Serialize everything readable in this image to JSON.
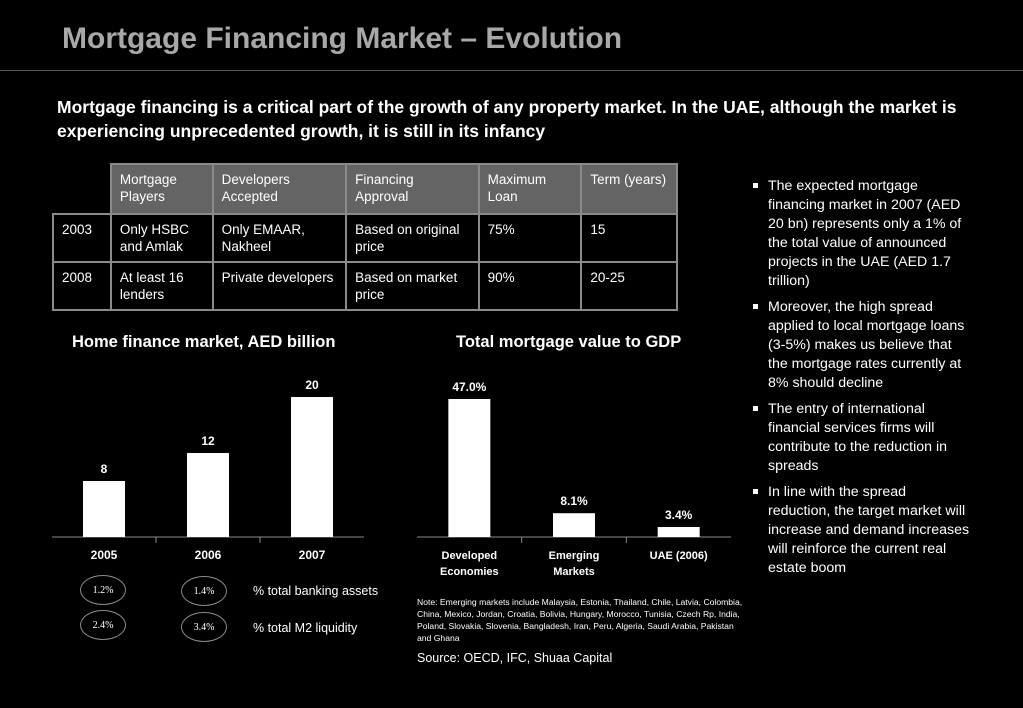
{
  "title": "Mortgage Financing Market – Evolution",
  "subtitle": "Mortgage financing is a critical part of the growth of any property market. In the UAE, although the market is experiencing unprecedented growth, it is still in its infancy",
  "table": {
    "headers": [
      "Mortgage Players",
      "Developers Accepted",
      "Financing Approval",
      "Maximum Loan",
      "Term (years)"
    ],
    "rows": [
      {
        "year": "2003",
        "cells": [
          "Only HSBC and Amlak",
          "Only EMAAR, Nakheel",
          "Based on original price",
          "75%",
          "15"
        ]
      },
      {
        "year": "2008",
        "cells": [
          "At least 16 lenders",
          "Private developers",
          "Based on market price",
          "90%",
          "20-25"
        ]
      }
    ]
  },
  "chart_data": [
    {
      "type": "bar",
      "title": "Home finance market, AED billion",
      "categories": [
        "2005",
        "2006",
        "2007"
      ],
      "values": [
        8,
        12,
        20
      ],
      "value_labels": [
        "8",
        "12",
        "20"
      ],
      "bar_color": "#ffffff"
    },
    {
      "type": "bar",
      "title": "Total mortgage value to GDP",
      "categories": [
        "Developed Economies",
        "Emerging Markets",
        "UAE (2006)"
      ],
      "category_lines": [
        [
          "Developed",
          "Economies"
        ],
        [
          "Emerging",
          "Markets"
        ],
        [
          "UAE (2006)"
        ]
      ],
      "values": [
        47.0,
        8.1,
        3.4
      ],
      "value_labels": [
        "47.0%",
        "8.1%",
        "3.4%"
      ],
      "bar_color": "#ffffff"
    }
  ],
  "indicators": {
    "banking_assets": {
      "label": "% total banking assets",
      "values": [
        "1.2%",
        "1.4%"
      ]
    },
    "m2_liquidity": {
      "label": "% total M2 liquidity",
      "values": [
        "2.4%",
        "3.4%"
      ]
    }
  },
  "note": "Note: Emerging markets include Malaysia, Estonia, Thailand, Chile, Latvia, Colombia, China, Mexico, Jordan, Croatia, Bolivia, Hungary, Morocco, Tunisia, Czech Rp, India, Poland, Slovakia, Slovenia, Bangladesh, Iran, Peru, Algeria, Saudi Arabia, Pakistan and Ghana",
  "source": "Source: OECD, IFC, Shuaa Capital",
  "bullets": [
    "The expected mortgage financing market in 2007 (AED 20 bn) represents only a 1% of the total value of announced projects in the UAE (AED 1.7 trillion)",
    "Moreover, the high spread applied to local mortgage loans (3-5%) makes us believe that the mortgage rates currently at 8% should decline",
    "The entry of international financial services firms will contribute to the reduction in spreads",
    "In line with the spread reduction, the target market will increase and demand increases will reinforce the current real estate boom"
  ],
  "colors": {
    "background": "#000000",
    "title": "#a8a8a8",
    "table_header": "#646464",
    "table_border": "#8a8a8a"
  }
}
